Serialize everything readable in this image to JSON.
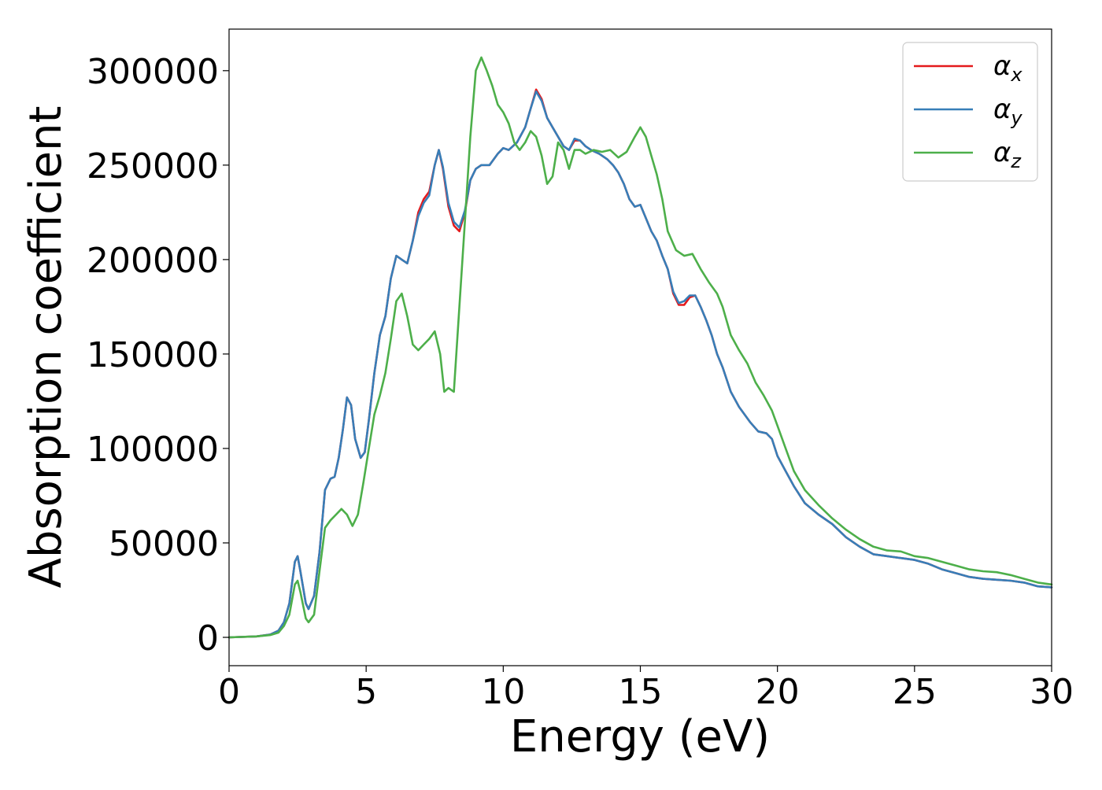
{
  "chart_data": {
    "type": "line",
    "xlabel": "Energy (eV)",
    "ylabel": "Absorption coefficient",
    "xlim": [
      0,
      30
    ],
    "ylim": [
      -15000,
      322000
    ],
    "xticks": [
      0,
      5,
      10,
      15,
      20,
      25,
      30
    ],
    "yticks": [
      0,
      50000,
      100000,
      150000,
      200000,
      250000,
      300000
    ],
    "grid": false,
    "legend_position": "top-right",
    "series": [
      {
        "name": "αx",
        "legend_base": "α",
        "legend_sub": "x",
        "color": "#e41a1c",
        "x": [
          0,
          1,
          1.5,
          1.8,
          2.0,
          2.2,
          2.4,
          2.5,
          2.6,
          2.8,
          2.9,
          3.1,
          3.3,
          3.5,
          3.7,
          3.85,
          4.0,
          4.15,
          4.3,
          4.45,
          4.6,
          4.8,
          4.95,
          5.1,
          5.3,
          5.5,
          5.7,
          5.9,
          6.1,
          6.3,
          6.5,
          6.7,
          6.9,
          7.1,
          7.3,
          7.5,
          7.65,
          7.8,
          8.0,
          8.2,
          8.4,
          8.6,
          8.8,
          9.0,
          9.2,
          9.5,
          9.8,
          10.0,
          10.2,
          10.5,
          10.8,
          11.0,
          11.2,
          11.4,
          11.6,
          11.8,
          12.0,
          12.2,
          12.4,
          12.6,
          12.8,
          13.0,
          13.2,
          13.5,
          13.8,
          14.0,
          14.2,
          14.4,
          14.6,
          14.8,
          15.0,
          15.2,
          15.4,
          15.6,
          15.8,
          16.0,
          16.2,
          16.4,
          16.6,
          16.8,
          17.0,
          17.2,
          17.4,
          17.6,
          17.8,
          18.0,
          18.3,
          18.6,
          19.0,
          19.3,
          19.6,
          19.8,
          20.0,
          20.3,
          20.6,
          21.0,
          21.5,
          22.0,
          22.5,
          23.0,
          23.5,
          24.0,
          24.5,
          25.0,
          25.5,
          26.0,
          26.5,
          27.0,
          27.5,
          28.0,
          28.5,
          29.0,
          29.5,
          30.0
        ],
        "y": [
          0,
          500,
          1500,
          3500,
          8000,
          18000,
          40000,
          43000,
          35000,
          18000,
          15000,
          22000,
          45000,
          78000,
          84000,
          85000,
          95000,
          110000,
          127000,
          123000,
          105000,
          95000,
          98000,
          115000,
          140000,
          160000,
          170000,
          190000,
          202000,
          200000,
          198000,
          210000,
          225000,
          232000,
          236000,
          250000,
          258000,
          248000,
          228000,
          218000,
          215000,
          225000,
          242000,
          248000,
          250000,
          250000,
          256000,
          259000,
          258000,
          262000,
          270000,
          280000,
          290000,
          285000,
          275000,
          270000,
          265000,
          260000,
          258000,
          263000,
          263000,
          260000,
          258000,
          256000,
          253000,
          250000,
          246000,
          240000,
          232000,
          228000,
          229000,
          222000,
          215000,
          210000,
          202000,
          195000,
          182000,
          176000,
          176000,
          180000,
          181000,
          175000,
          168000,
          160000,
          150000,
          143000,
          130000,
          122000,
          114000,
          109000,
          108000,
          105000,
          96000,
          88000,
          80000,
          71000,
          65000,
          60000,
          53000,
          48000,
          44000,
          43000,
          42000,
          41000,
          39000,
          36000,
          34000,
          32000,
          31000,
          30500,
          30000,
          29000,
          27000,
          26500
        ]
      },
      {
        "name": "αy",
        "legend_base": "α",
        "legend_sub": "y",
        "color": "#377eb8",
        "x": [
          0,
          1,
          1.5,
          1.8,
          2.0,
          2.2,
          2.4,
          2.5,
          2.6,
          2.8,
          2.9,
          3.1,
          3.3,
          3.5,
          3.7,
          3.85,
          4.0,
          4.15,
          4.3,
          4.45,
          4.6,
          4.8,
          4.95,
          5.1,
          5.3,
          5.5,
          5.7,
          5.9,
          6.1,
          6.3,
          6.5,
          6.7,
          6.9,
          7.1,
          7.3,
          7.5,
          7.65,
          7.8,
          8.0,
          8.2,
          8.4,
          8.6,
          8.8,
          9.0,
          9.2,
          9.5,
          9.8,
          10.0,
          10.2,
          10.5,
          10.8,
          11.0,
          11.2,
          11.4,
          11.6,
          11.8,
          12.0,
          12.2,
          12.4,
          12.6,
          12.8,
          13.0,
          13.2,
          13.5,
          13.8,
          14.0,
          14.2,
          14.4,
          14.6,
          14.8,
          15.0,
          15.2,
          15.4,
          15.6,
          15.8,
          16.0,
          16.2,
          16.4,
          16.6,
          16.8,
          17.0,
          17.2,
          17.4,
          17.6,
          17.8,
          18.0,
          18.3,
          18.6,
          19.0,
          19.3,
          19.6,
          19.8,
          20.0,
          20.3,
          20.6,
          21.0,
          21.5,
          22.0,
          22.5,
          23.0,
          23.5,
          24.0,
          24.5,
          25.0,
          25.5,
          26.0,
          26.5,
          27.0,
          27.5,
          28.0,
          28.5,
          29.0,
          29.5,
          30.0
        ],
        "y": [
          0,
          500,
          1500,
          3500,
          8000,
          18000,
          40000,
          43000,
          35000,
          18000,
          15000,
          22000,
          45000,
          78000,
          84000,
          85000,
          95000,
          110000,
          127000,
          123000,
          105000,
          95000,
          98000,
          115000,
          140000,
          160000,
          170000,
          190000,
          202000,
          200000,
          198000,
          210000,
          223000,
          230000,
          234000,
          250000,
          258000,
          249000,
          230000,
          220000,
          217000,
          226000,
          242000,
          248000,
          250000,
          250000,
          256000,
          259000,
          258000,
          262000,
          270000,
          280000,
          289000,
          284000,
          275000,
          270000,
          265000,
          260000,
          258000,
          264000,
          263000,
          260000,
          258000,
          256000,
          253000,
          250000,
          246000,
          240000,
          232000,
          228000,
          229000,
          222000,
          215000,
          210000,
          202000,
          195000,
          183000,
          177000,
          178000,
          181000,
          181000,
          175000,
          168000,
          160000,
          150000,
          143000,
          130000,
          122000,
          114000,
          109000,
          108000,
          105000,
          96000,
          88000,
          80000,
          71000,
          65000,
          60000,
          53000,
          48000,
          44000,
          43000,
          42000,
          41000,
          39000,
          36000,
          34000,
          32000,
          31000,
          30500,
          30000,
          29000,
          27000,
          26500
        ]
      },
      {
        "name": "αz",
        "legend_base": "α",
        "legend_sub": "z",
        "color": "#4daf4a",
        "x": [
          0,
          1,
          1.5,
          1.8,
          2.0,
          2.2,
          2.4,
          2.5,
          2.6,
          2.8,
          2.9,
          3.1,
          3.3,
          3.5,
          3.7,
          3.9,
          4.1,
          4.3,
          4.5,
          4.7,
          4.9,
          5.1,
          5.3,
          5.5,
          5.7,
          5.9,
          6.1,
          6.3,
          6.5,
          6.7,
          6.9,
          7.1,
          7.3,
          7.5,
          7.7,
          7.85,
          8.0,
          8.2,
          8.4,
          8.6,
          8.8,
          9.0,
          9.2,
          9.4,
          9.6,
          9.8,
          10.0,
          10.2,
          10.4,
          10.6,
          10.8,
          11.0,
          11.2,
          11.4,
          11.6,
          11.8,
          12.0,
          12.2,
          12.4,
          12.6,
          12.8,
          13.0,
          13.3,
          13.6,
          13.9,
          14.2,
          14.5,
          14.8,
          15.0,
          15.2,
          15.4,
          15.6,
          15.8,
          16.0,
          16.3,
          16.6,
          16.9,
          17.2,
          17.5,
          17.8,
          18.0,
          18.3,
          18.6,
          18.9,
          19.2,
          19.5,
          19.8,
          20.0,
          20.3,
          20.6,
          21.0,
          21.5,
          22.0,
          22.5,
          23.0,
          23.5,
          24.0,
          24.5,
          25.0,
          25.5,
          26.0,
          26.5,
          27.0,
          27.5,
          28.0,
          28.5,
          29.0,
          29.5,
          30.0
        ],
        "y": [
          0,
          500,
          1200,
          2500,
          6000,
          12000,
          28000,
          30000,
          24000,
          10000,
          8000,
          12000,
          35000,
          58000,
          62000,
          65000,
          68000,
          65000,
          59000,
          65000,
          82000,
          100000,
          118000,
          128000,
          140000,
          158000,
          178000,
          182000,
          170000,
          155000,
          152000,
          155000,
          158000,
          162000,
          150000,
          130000,
          132000,
          130000,
          175000,
          220000,
          265000,
          300000,
          307000,
          300000,
          292000,
          282000,
          278000,
          272000,
          262000,
          258000,
          262000,
          268000,
          265000,
          255000,
          240000,
          244000,
          262000,
          258000,
          248000,
          258000,
          258000,
          256000,
          258000,
          257000,
          258000,
          254000,
          257000,
          265000,
          270000,
          265000,
          255000,
          245000,
          232000,
          215000,
          205000,
          202000,
          203000,
          195000,
          188000,
          182000,
          175000,
          160000,
          152000,
          145000,
          135000,
          128000,
          120000,
          112000,
          100000,
          88000,
          78000,
          70000,
          63000,
          57000,
          52000,
          48000,
          46000,
          45500,
          43000,
          42000,
          40000,
          38000,
          36000,
          35000,
          34500,
          33000,
          31000,
          29000,
          28000
        ]
      }
    ]
  }
}
